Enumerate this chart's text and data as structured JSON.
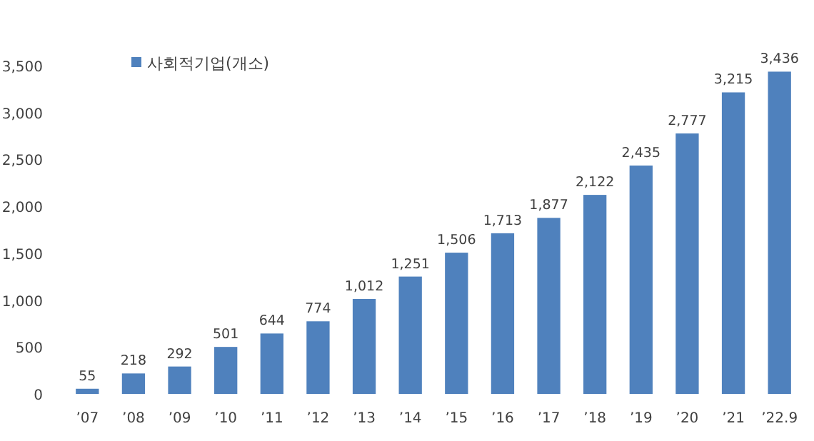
{
  "chart_data": {
    "type": "bar",
    "categories": [
      "’07",
      "’08",
      "’09",
      "’10",
      "’11",
      "’12",
      "’13",
      "’14",
      "’15",
      "’16",
      "’17",
      "’18",
      "’19",
      "’20",
      "’21",
      "’22.9"
    ],
    "series": [
      {
        "name": "사회적기업(개소)",
        "color": "#4f81bd",
        "values": [
          55,
          218,
          292,
          501,
          644,
          774,
          1012,
          1251,
          1506,
          1713,
          1877,
          2122,
          2435,
          2777,
          3215,
          3436
        ],
        "value_labels": [
          "55",
          "218",
          "292",
          "501",
          "644",
          "774",
          "1,012",
          "1,251",
          "1,506",
          "1,713",
          "1,877",
          "2,122",
          "2,435",
          "2,777",
          "3,215",
          "3,436"
        ]
      }
    ],
    "ylim": [
      0,
      3500
    ],
    "yticks": [
      0,
      500,
      {
        "value": 1000,
        "label": "1,000"
      },
      {
        "value": 1500,
        "label": "1,500"
      },
      {
        "value": 2000,
        "label": "2,000"
      },
      {
        "value": 2500,
        "label": "2,500"
      },
      {
        "value": 3000,
        "label": "3,000"
      },
      {
        "value": 3500,
        "label": "3,500"
      }
    ],
    "grid": false,
    "legend": "top left"
  }
}
